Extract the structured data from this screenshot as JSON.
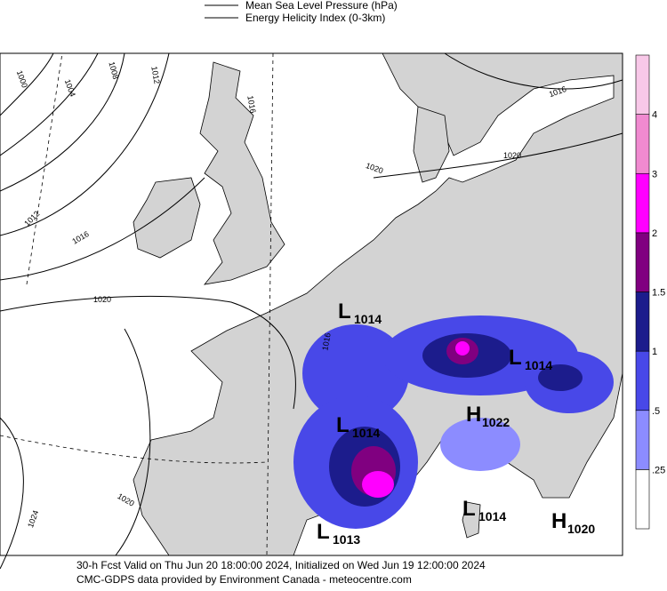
{
  "legend": [
    "Mean Sea Level Pressure (hPa)",
    "Energy Helicity Index (0-3km)"
  ],
  "colorbar": {
    "labels": [
      ".25",
      ".5",
      "1",
      "1.5",
      "2",
      "3",
      "4"
    ],
    "colors": [
      "#ffffff",
      "#8c8cff",
      "#4848e8",
      "#1c1c8c",
      "#800080",
      "#ff00ff",
      "#f08ad0",
      "#f8c8e8"
    ]
  },
  "centers": [
    {
      "letter": "L",
      "value": "1014"
    },
    {
      "letter": "L",
      "value": "1014"
    },
    {
      "letter": "H",
      "value": "1022"
    },
    {
      "letter": "L",
      "value": "1014"
    },
    {
      "letter": "L",
      "value": "1014"
    },
    {
      "letter": "H",
      "value": "1020"
    },
    {
      "letter": "L",
      "value": "1013"
    }
  ],
  "contour_labels": [
    "1000",
    "1004",
    "1008",
    "1012",
    "1012",
    "1016",
    "1020",
    "1016",
    "1020",
    "1020",
    "1016",
    "1016",
    "1020",
    "1024"
  ],
  "footer": [
    "30-h Fcst Valid on Thu Jun 20 18:00:00 2024, Initialized on Wed Jun 19 12:00:00 2024",
    "CMC-GDPS data provided by Environment Canada - meteocentre.com"
  ]
}
